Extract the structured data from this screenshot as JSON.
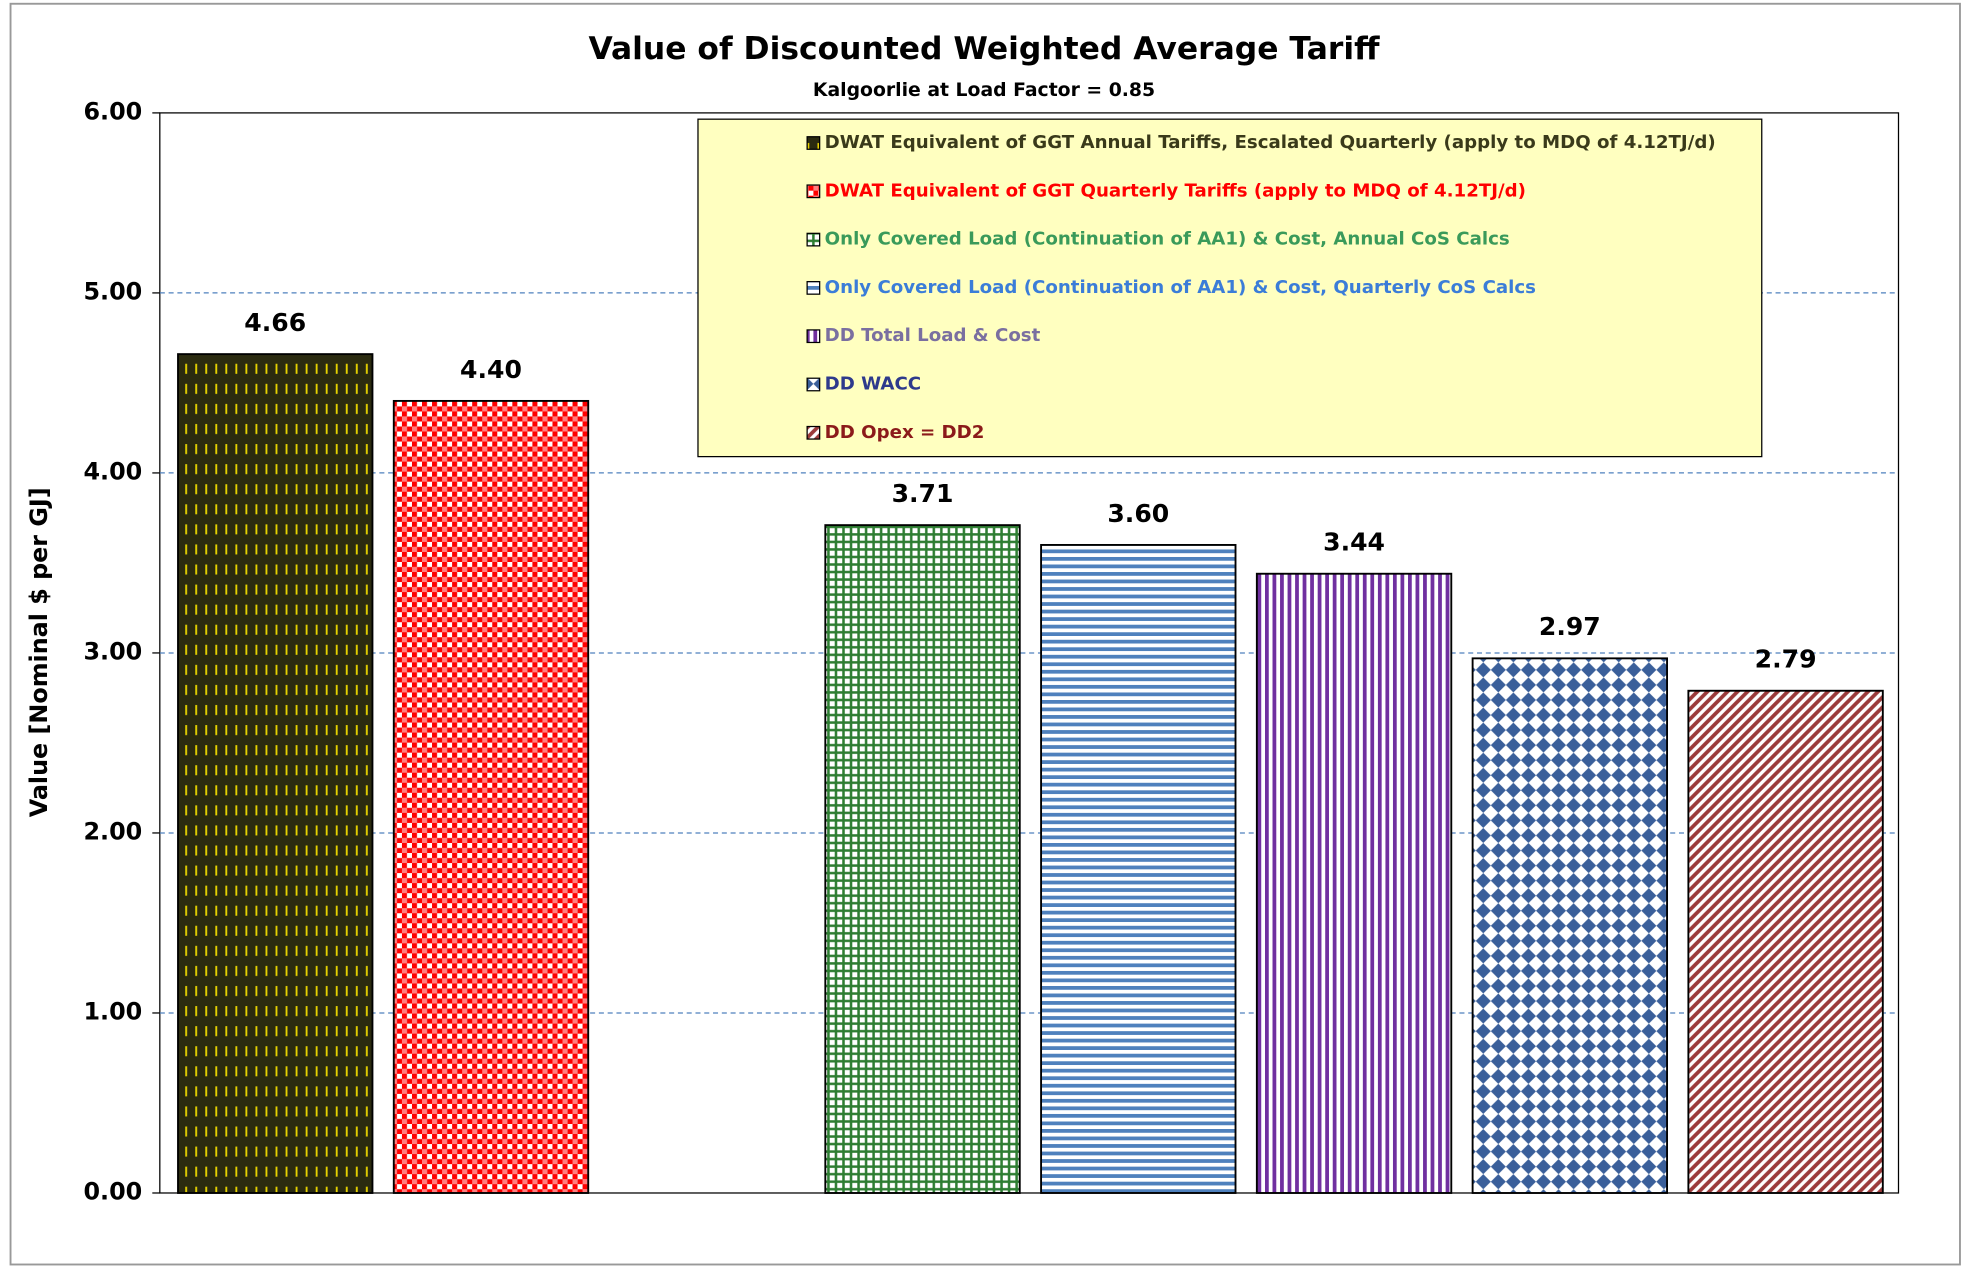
{
  "chart_data": {
    "type": "bar",
    "title": "Value of Discounted Weighted Average Tariff",
    "subtitle": "Kalgoorlie at Load Factor = 0.85",
    "ylabel": "Value [Nominal $  per GJ]",
    "ylim": [
      0,
      6
    ],
    "yticks": [
      {
        "value": 0,
        "label": "0.00"
      },
      {
        "value": 1,
        "label": "1.00"
      },
      {
        "value": 2,
        "label": "2.00"
      },
      {
        "value": 3,
        "label": "3.00"
      },
      {
        "value": 4,
        "label": "4.00"
      },
      {
        "value": 5,
        "label": "5.00"
      },
      {
        "value": 6,
        "label": "6.00"
      }
    ],
    "grid": true,
    "series": [
      {
        "name": "DWAT Equivalent of GGT Annual Tariffs, Escalated Quarterly (apply to MDQ of 4.12TJ/d)",
        "color": "#e6d200",
        "label_color": "#3a3a1a",
        "values": [
          4.66
        ],
        "value_labels": [
          "4.66"
        ]
      },
      {
        "name": "DWAT Equivalent of GGT Quarterly Tariffs (apply to MDQ of 4.12TJ/d)",
        "color": "#ff0000",
        "label_color": "#ff0000",
        "values": [
          4.4
        ],
        "value_labels": [
          "4.40"
        ]
      },
      {
        "name": "Only Covered Load (Continuation of AA1) & Cost, Annual CoS Calcs",
        "color": "#2e7d32",
        "label_color": "#3a9a5a",
        "values": [
          3.71
        ],
        "value_labels": [
          "3.71"
        ]
      },
      {
        "name": "Only Covered Load (Continuation of AA1) & Cost, Quarterly CoS Calcs",
        "color": "#4f81bd",
        "label_color": "#3b7dd8",
        "values": [
          3.6
        ],
        "value_labels": [
          "3.60"
        ]
      },
      {
        "name": "DD Total Load & Cost",
        "color": "#7030a0",
        "label_color": "#7a6fa0",
        "values": [
          3.44
        ],
        "value_labels": [
          "3.44"
        ]
      },
      {
        "name": "DD WACC",
        "color": "#3a5f9a",
        "label_color": "#2e3a8c",
        "values": [
          2.97
        ],
        "value_labels": [
          "2.97"
        ]
      },
      {
        "name": "DD Opex = DD2",
        "color": "#9b3b3b",
        "label_color": "#8b1a1a",
        "values": [
          2.79
        ],
        "value_labels": [
          "2.79"
        ]
      }
    ]
  }
}
